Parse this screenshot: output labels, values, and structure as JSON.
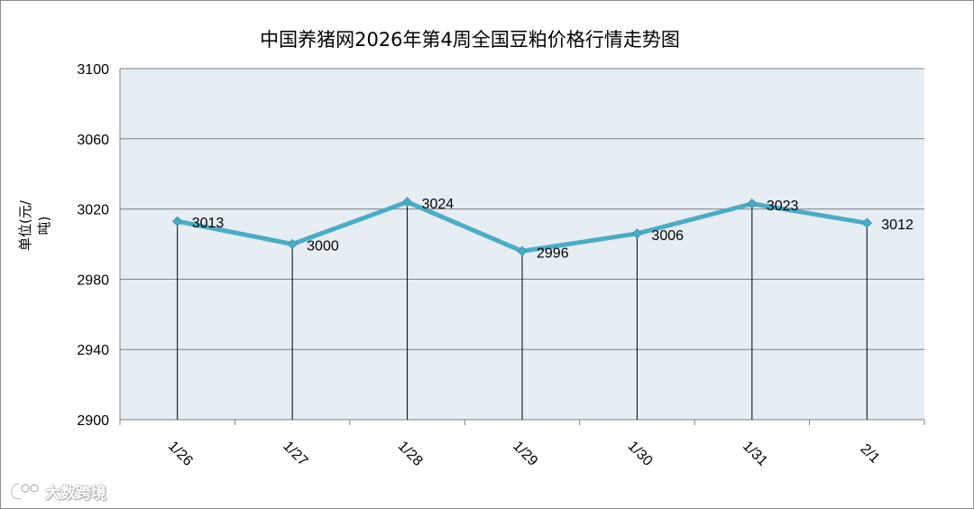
{
  "chart_data": {
    "type": "line",
    "title": "中国养猪网2026年第4周全国豆粕价格行情走势图",
    "xlabel": "",
    "ylabel": "单位(元/吨)",
    "categories": [
      "1/26",
      "1/27",
      "1/28",
      "1/29",
      "1/30",
      "1/31",
      "2/1"
    ],
    "series": [
      {
        "name": "",
        "values": [
          3013,
          3000,
          3024,
          2996,
          3006,
          3023,
          3012
        ]
      }
    ],
    "data_labels": [
      "3013",
      "3000",
      "3024",
      "2996",
      "3006",
      "3023",
      "3012"
    ],
    "yticks": [
      "2900",
      "2940",
      "2980",
      "3020",
      "3060",
      "3100"
    ],
    "ylim": [
      2900,
      3100
    ],
    "grid": true,
    "legend": "none",
    "colors": {
      "line": "#4bacc6",
      "plot_bg": "#e6eef4",
      "gridline": "#7f7f7f",
      "drop_line": "#000000"
    }
  },
  "watermark": {
    "text": "大数跨境",
    "icon": "logo-icon"
  }
}
